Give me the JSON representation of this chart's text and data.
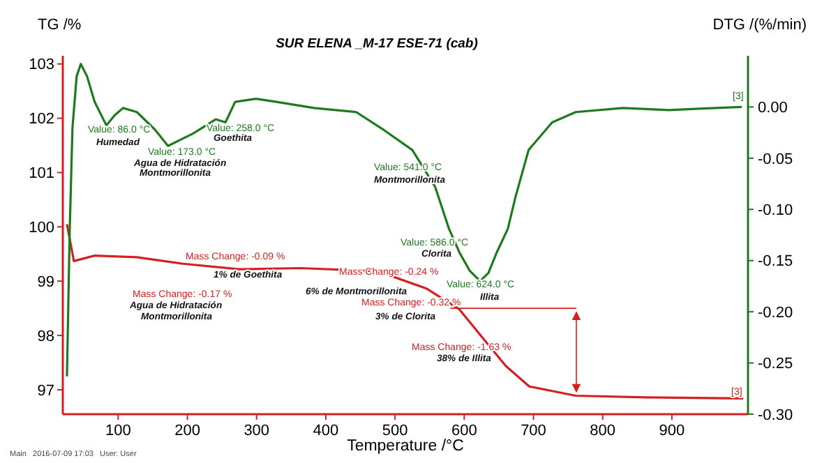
{
  "chart_data": {
    "type": "line",
    "title": "SUR ELENA _M-17 ESE-71 (cab)",
    "xlabel": "Temperature /°C",
    "ylabel": "TG /%",
    "y2label": "DTG /(%/min)",
    "xlim": [
      20,
      1010
    ],
    "xticks": [
      100,
      200,
      300,
      400,
      500,
      600,
      700,
      800,
      900
    ],
    "ylim": [
      96.55,
      103.15
    ],
    "yticks": [
      97,
      98,
      99,
      100,
      101,
      102,
      103
    ],
    "y2lim": [
      -0.3,
      0.05
    ],
    "y2ticks": [
      {
        "value": 0,
        "label": "0.00"
      },
      {
        "value": -0.05,
        "label": "-0.05"
      },
      {
        "value": -0.1,
        "label": "-0.10"
      },
      {
        "value": -0.15,
        "label": "-0.15"
      },
      {
        "value": -0.2,
        "label": "-0.20"
      },
      {
        "value": -0.25,
        "label": "-0.25"
      },
      {
        "value": -0.3,
        "label": "-0.30"
      }
    ],
    "grid": false,
    "marker": "none",
    "line_style": "solid",
    "series": [
      {
        "color": "#d42020",
        "x": [
          26,
          36,
          66,
          127,
          194,
          275,
          363,
          464,
          491,
          546,
          593,
          627,
          660,
          694,
          761,
          862,
          1003
        ],
        "values": [
          100.05,
          99.37,
          99.47,
          99.44,
          99.32,
          99.22,
          99.24,
          99.19,
          99.11,
          98.86,
          98.48,
          97.95,
          97.44,
          97.06,
          96.89,
          96.86,
          96.84
        ]
      },
      {
        "color": "#1e7a1e",
        "axis": "y2",
        "x": [
          26,
          30,
          34,
          40,
          46,
          55,
          66,
          83,
          95,
          107,
          127,
          153,
          172,
          190,
          208,
          241,
          255,
          269,
          299,
          329,
          383,
          444,
          485,
          525,
          558,
          578,
          593,
          608,
          623,
          635,
          647,
          663,
          674,
          693,
          727,
          761,
          829,
          896,
          963,
          1001
        ],
        "values": [
          -0.263,
          -0.12,
          -0.02,
          0.03,
          0.042,
          0.03,
          0.005,
          -0.018,
          -0.008,
          -0.001,
          -0.005,
          -0.022,
          -0.038,
          -0.032,
          -0.026,
          -0.012,
          -0.015,
          0.005,
          0.008,
          0.005,
          -0.001,
          -0.005,
          -0.023,
          -0.042,
          -0.078,
          -0.119,
          -0.142,
          -0.16,
          -0.17,
          -0.162,
          -0.142,
          -0.119,
          -0.088,
          -0.042,
          -0.015,
          -0.005,
          -0.001,
          -0.003,
          -0.001,
          0
        ]
      }
    ],
    "annotations": [
      "Value: 86.0 °C",
      "Humedad",
      "Value: 173.0 °C",
      "Agua de Hidratación",
      "Montmorillonita",
      "Value: 258.0 °C",
      "Goethita",
      "Value: 541.0 °C",
      "Montmorillonita",
      "Value: 586.0 °C",
      "Clorita",
      "Value: 624.0 °C",
      "Illita",
      "Mass Change: -0.09 %",
      "1% de Goethita",
      "Mass Change: -0.17 %",
      "Agua de Hidratación",
      "Montmorillonita",
      "Mass Change: -0.24 %",
      "6% de Montmorillonita",
      "Mass Change: -0.32 %",
      "3% de Clorita",
      "Mass Change: -1.63 %",
      "38% de Illita",
      "[3]",
      "[3]",
      "Main   2016-07-09 17:03   User: User"
    ]
  }
}
